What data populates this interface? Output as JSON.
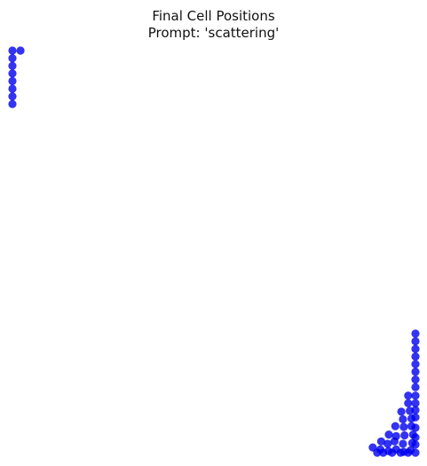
{
  "title_line1": "Final Cell Positions",
  "title_line2": "Prompt: 'scattering'",
  "chart_data": {
    "type": "scatter",
    "title": "Final Cell Positions\nPrompt: 'scattering'",
    "xlabel": "",
    "ylabel": "",
    "axes_visible": false,
    "grid": false,
    "xlim": [
      0,
      100
    ],
    "ylim": [
      0,
      100
    ],
    "marker_color": "#0000ee",
    "marker_alpha": 0.8,
    "points": [
      [
        0.0,
        100.0
      ],
      [
        2.0,
        100.0
      ],
      [
        0.0,
        98.1
      ],
      [
        0.0,
        96.2
      ],
      [
        0.0,
        94.3
      ],
      [
        0.0,
        92.4
      ],
      [
        0.0,
        90.5
      ],
      [
        0.0,
        88.6
      ],
      [
        0.0,
        86.7
      ],
      [
        100.0,
        29.6
      ],
      [
        100.0,
        27.7
      ],
      [
        100.0,
        25.8
      ],
      [
        100.0,
        23.9
      ],
      [
        100.0,
        22.0
      ],
      [
        100.0,
        20.1
      ],
      [
        100.0,
        18.2
      ],
      [
        100.0,
        16.3
      ],
      [
        98.2,
        14.2
      ],
      [
        100.0,
        14.2
      ],
      [
        98.2,
        12.3
      ],
      [
        100.0,
        12.3
      ],
      [
        96.5,
        10.2
      ],
      [
        98.6,
        10.4
      ],
      [
        100.0,
        10.6
      ],
      [
        96.9,
        8.3
      ],
      [
        99.0,
        8.5
      ],
      [
        100.0,
        8.8
      ],
      [
        95.0,
        6.6
      ],
      [
        97.1,
        6.4
      ],
      [
        99.0,
        6.6
      ],
      [
        100.0,
        6.2
      ],
      [
        93.4,
        4.5
      ],
      [
        95.2,
        4.1
      ],
      [
        97.3,
        4.3
      ],
      [
        99.4,
        4.5
      ],
      [
        100.0,
        3.8
      ],
      [
        91.5,
        2.8
      ],
      [
        93.1,
        2.2
      ],
      [
        94.8,
        2.8
      ],
      [
        96.9,
        2.2
      ],
      [
        99.2,
        2.4
      ],
      [
        100.0,
        2.0
      ],
      [
        89.4,
        1.3
      ],
      [
        91.3,
        0.8
      ],
      [
        93.3,
        0.4
      ],
      [
        95.2,
        0.8
      ],
      [
        97.1,
        0.2
      ],
      [
        98.8,
        0.6
      ],
      [
        100.0,
        0.0
      ],
      [
        92.0,
        0.0
      ],
      [
        94.2,
        0.0
      ],
      [
        96.3,
        0.0
      ],
      [
        98.2,
        0.0
      ],
      [
        90.5,
        0.0
      ]
    ]
  }
}
